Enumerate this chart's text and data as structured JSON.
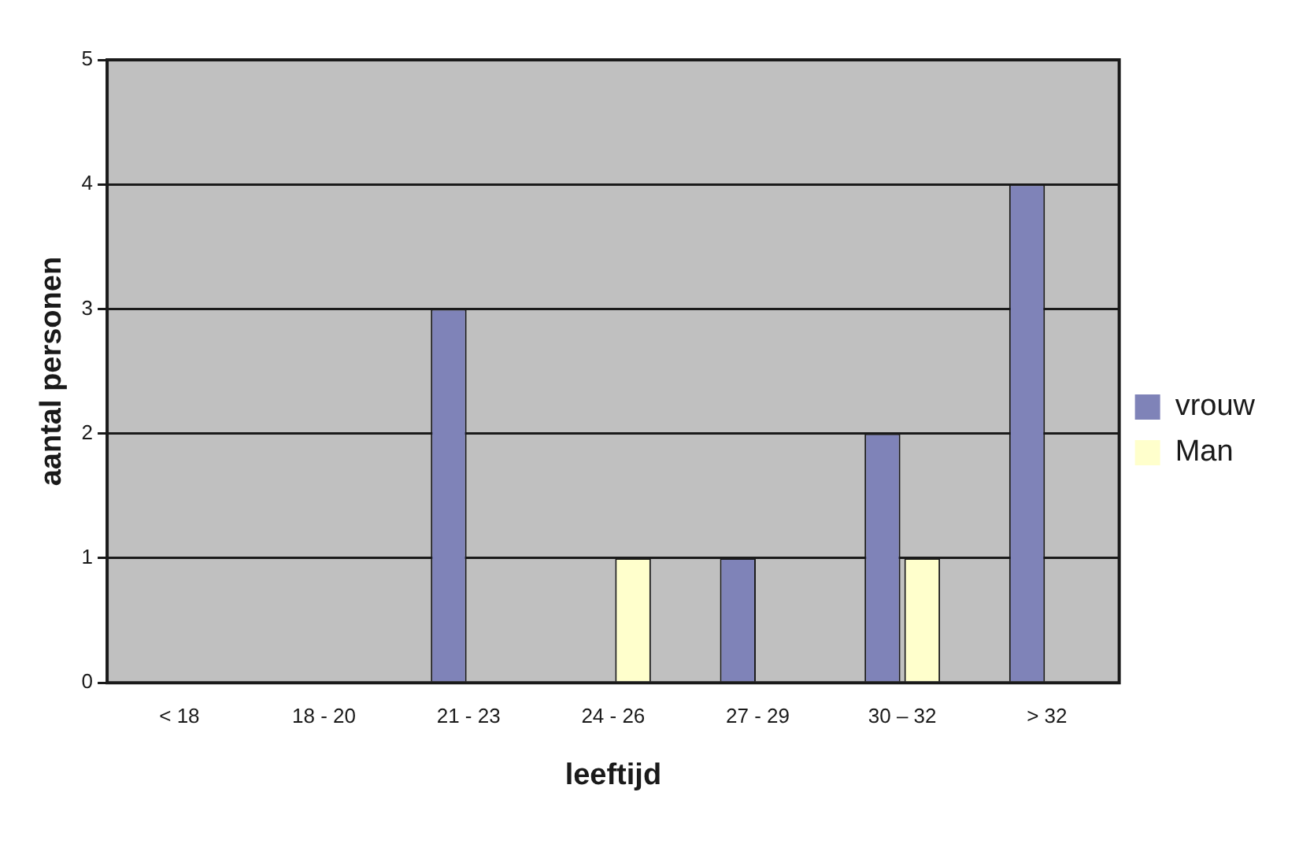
{
  "chart_data": {
    "type": "bar",
    "xlabel": "leeftijd",
    "ylabel": "aantal personen",
    "categories": [
      "< 18",
      "18 - 20",
      "21 - 23",
      "24 - 26",
      "27 - 29",
      "30 – 32",
      "> 32"
    ],
    "series": [
      {
        "name": "vrouw",
        "color": "#7f83b8",
        "values": [
          0,
          0,
          3,
          0,
          1,
          2,
          4
        ]
      },
      {
        "name": "Man",
        "color": "#ffffcc",
        "values": [
          0,
          0,
          0,
          1,
          0,
          1,
          0
        ]
      }
    ],
    "ylim": [
      0,
      5
    ],
    "yticks": [
      0,
      1,
      2,
      3,
      4,
      5
    ],
    "grid": "y",
    "legend": "right"
  }
}
